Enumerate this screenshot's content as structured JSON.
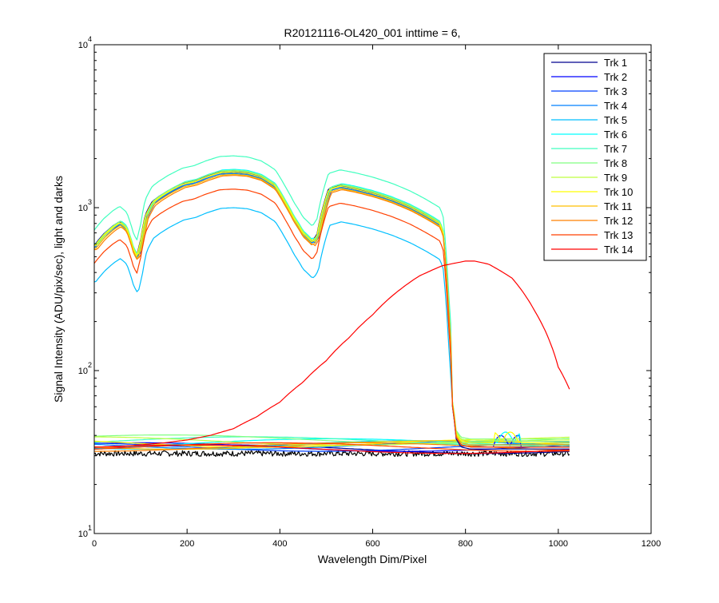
{
  "chart_data": {
    "type": "line",
    "title": "R20121116-OL420_001 inttime = 6,",
    "xlabel": "Wavelength Dim/Pixel",
    "ylabel": "Signal Intensity (ADU/pix/sec), light and darks",
    "xlim": [
      0,
      1200
    ],
    "ylim": [
      10,
      10000
    ],
    "yscale": "log",
    "xticks": [
      0,
      200,
      400,
      600,
      800,
      1000,
      1200
    ],
    "yticks": [
      {
        "base": "10",
        "exp": "1",
        "value": 10
      },
      {
        "base": "10",
        "exp": "2",
        "value": 100
      },
      {
        "base": "10",
        "exp": "3",
        "value": 1000
      },
      {
        "base": "10",
        "exp": "4",
        "value": 10000
      }
    ],
    "grid": false,
    "legend_position": "top-right",
    "series": [
      {
        "name": "Trk 1",
        "color": "#00008f",
        "shape": "lamp",
        "scale": 1.68,
        "dark": 33
      },
      {
        "name": "Trk 2",
        "color": "#0000ff",
        "shape": "lamp",
        "scale": 1.66,
        "dark": 34
      },
      {
        "name": "Trk 3",
        "color": "#0040ff",
        "shape": "lamp",
        "scale": 1.64,
        "dark": 34
      },
      {
        "name": "Trk 4",
        "color": "#0080ff",
        "shape": "lamp",
        "scale": 1.62,
        "dark": 35
      },
      {
        "name": "Trk 5",
        "color": "#00bfff",
        "shape": "lamp",
        "scale": 1.0,
        "dark": 35
      },
      {
        "name": "Trk 6",
        "color": "#00ffff",
        "shape": "lamp",
        "scale": 1.72,
        "dark": 36
      },
      {
        "name": "Trk 7",
        "color": "#40ffbf",
        "shape": "lamp",
        "scale": 2.08,
        "dark": 37
      },
      {
        "name": "Trk 8",
        "color": "#80ff80",
        "shape": "lamp",
        "scale": 1.7,
        "dark": 38
      },
      {
        "name": "Trk 9",
        "color": "#bfff40",
        "shape": "lamp",
        "scale": 1.68,
        "dark": 37
      },
      {
        "name": "Trk 10",
        "color": "#ffff00",
        "shape": "lamp",
        "scale": 1.65,
        "dark": 36
      },
      {
        "name": "Trk 11",
        "color": "#ffbf00",
        "shape": "lamp",
        "scale": 1.6,
        "dark": 35
      },
      {
        "name": "Trk 12",
        "color": "#ff8000",
        "shape": "lamp",
        "scale": 1.58,
        "dark": 34
      },
      {
        "name": "Trk 13",
        "color": "#ff4000",
        "shape": "lamp",
        "scale": 1.3,
        "dark": 34
      },
      {
        "name": "Trk 14",
        "color": "#ff0000",
        "shape": "peak",
        "scale": 1.0,
        "dark": 33
      }
    ],
    "lamp_profile": {
      "x": [
        0,
        20,
        40,
        55,
        70,
        85,
        92,
        100,
        110,
        125,
        140,
        160,
        190,
        215,
        240,
        270,
        300,
        330,
        360,
        390,
        410,
        430,
        450,
        462,
        470,
        480,
        490,
        505,
        530,
        560,
        600,
        640,
        680,
        720,
        745,
        752,
        758,
        765,
        772,
        780,
        790,
        810,
        840,
        870,
        900,
        940,
        1000,
        1024
      ],
      "y": [
        350,
        410,
        460,
        490,
        450,
        330,
        305,
        380,
        540,
        650,
        700,
        760,
        840,
        870,
        930,
        990,
        1000,
        985,
        930,
        820,
        660,
        520,
        420,
        390,
        370,
        410,
        560,
        780,
        820,
        790,
        740,
        680,
        610,
        530,
        480,
        420,
        260,
        120,
        60,
        38,
        34,
        33,
        33,
        33,
        33,
        33,
        33,
        33
      ]
    },
    "peak_profile": {
      "x": [
        0,
        50,
        100,
        150,
        200,
        250,
        300,
        350,
        400,
        450,
        500,
        550,
        600,
        650,
        700,
        750,
        800,
        820,
        850,
        900,
        950,
        1000,
        1024
      ],
      "y": [
        34,
        34,
        35,
        36,
        37.5,
        40,
        44,
        52,
        64,
        85,
        115,
        160,
        220,
        300,
        380,
        440,
        470,
        470,
        450,
        370,
        230,
        105,
        77
      ]
    },
    "dark_floor": 31
  }
}
